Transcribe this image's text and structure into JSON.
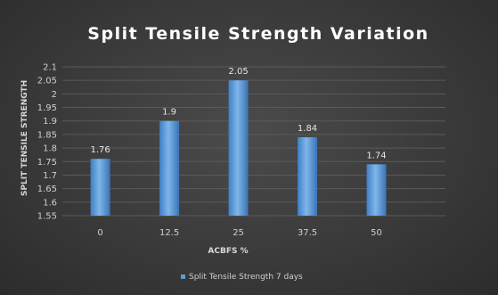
{
  "chart_data": {
    "type": "bar",
    "title": "Split Tensile Strength Variation",
    "xlabel": "ACBFS %",
    "ylabel": "SPLIT TENSILE STRENGTH",
    "categories": [
      "0",
      "12.5",
      "25",
      "37.5",
      "50"
    ],
    "series": [
      {
        "name": "Split Tensile Strength 7 days",
        "values": [
          1.76,
          1.9,
          2.05,
          1.84,
          1.74
        ],
        "color": "#5b9bd5"
      }
    ],
    "data_labels": [
      "1.76",
      "1.9",
      "2.05",
      "1.84",
      "1.74"
    ],
    "ylim": [
      1.55,
      2.1
    ],
    "yticks": [
      "2.1",
      "2.05",
      "2",
      "1.95",
      "1.9",
      "1.85",
      "1.8",
      "1.75",
      "1.7",
      "1.65",
      "1.6",
      "1.55"
    ],
    "grid": true,
    "legend_position": "bottom"
  }
}
